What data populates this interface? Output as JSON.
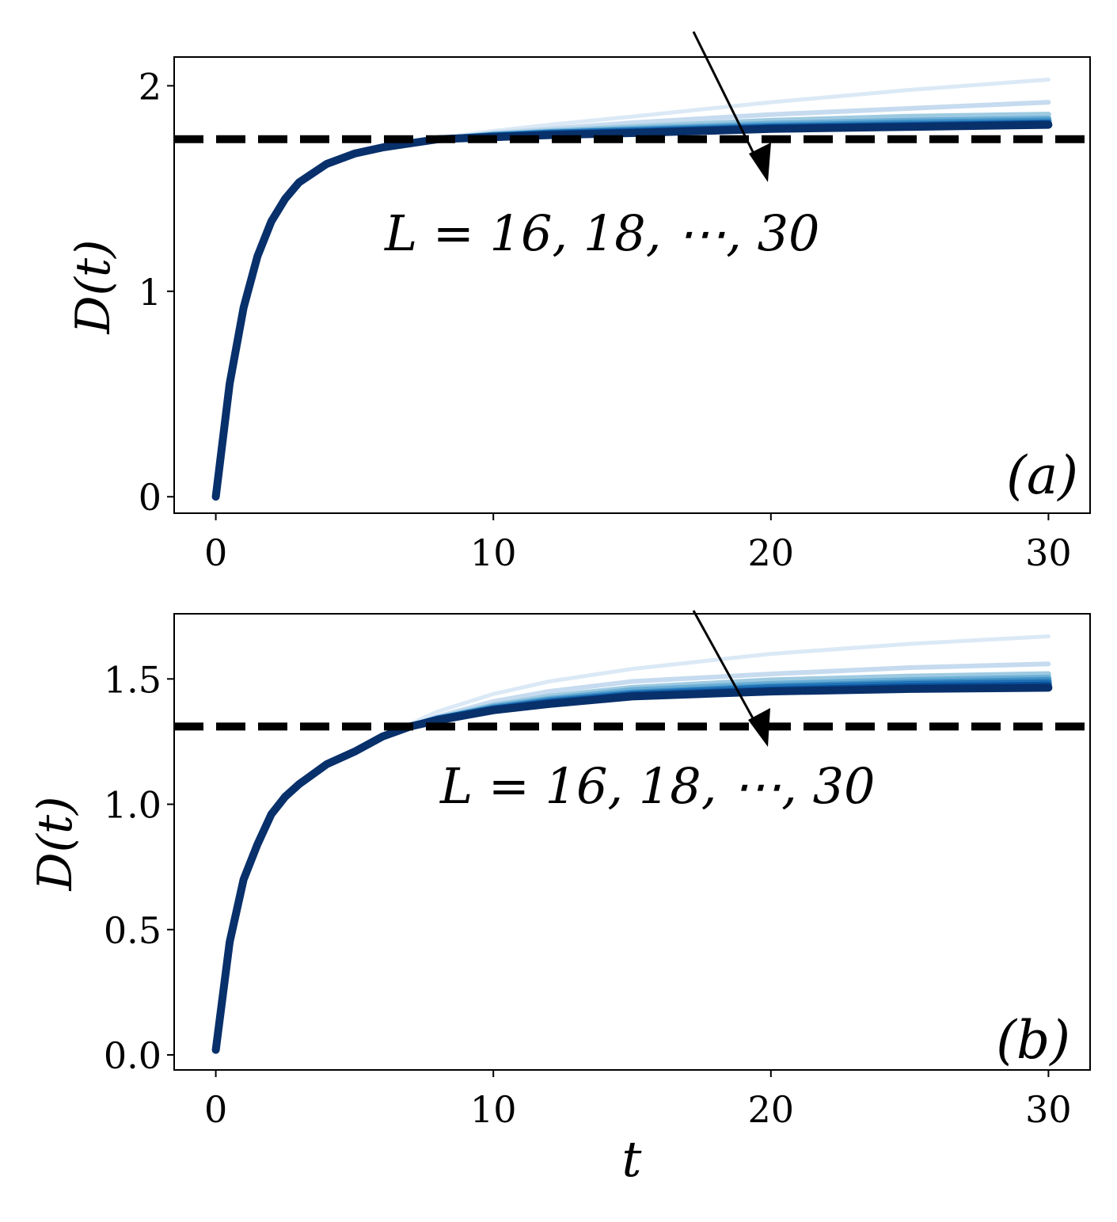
{
  "chart_data": [
    {
      "type": "line",
      "panel_label": "(a)",
      "ylabel": "D(t)",
      "xlabel": "",
      "xlim": [
        -1.5,
        31.5
      ],
      "ylim": [
        -0.08,
        2.14
      ],
      "xticks": [
        0,
        10,
        20,
        30
      ],
      "xtick_labels": [
        "0",
        "10",
        "20",
        "30"
      ],
      "yticks": [
        0,
        1,
        2
      ],
      "ytick_labels": [
        "0",
        "1",
        "2"
      ],
      "annotation": "L = 16, 18, ⋯, 30",
      "reference_line": {
        "y": 1.74,
        "style": "dashed",
        "color": "#000000"
      },
      "x": [
        0,
        0.5,
        1,
        1.5,
        2,
        2.5,
        3,
        4,
        5,
        6,
        8,
        10,
        12,
        15,
        20,
        25,
        30
      ],
      "series": [
        {
          "L": 16,
          "color": "#dbe9f6",
          "values": [
            0,
            0.55,
            0.92,
            1.17,
            1.34,
            1.45,
            1.53,
            1.62,
            1.67,
            1.7,
            1.745,
            1.78,
            1.81,
            1.85,
            1.92,
            1.98,
            2.03
          ]
        },
        {
          "L": 18,
          "color": "#c6dbef",
          "values": [
            0,
            0.55,
            0.92,
            1.17,
            1.34,
            1.45,
            1.53,
            1.62,
            1.67,
            1.7,
            1.74,
            1.77,
            1.79,
            1.82,
            1.86,
            1.89,
            1.92
          ]
        },
        {
          "L": 20,
          "color": "#9ecae1",
          "values": [
            0,
            0.55,
            0.92,
            1.17,
            1.34,
            1.45,
            1.53,
            1.62,
            1.67,
            1.7,
            1.74,
            1.765,
            1.78,
            1.8,
            1.83,
            1.85,
            1.86
          ]
        },
        {
          "L": 22,
          "color": "#6baed6",
          "values": [
            0,
            0.55,
            0.92,
            1.17,
            1.34,
            1.45,
            1.53,
            1.62,
            1.67,
            1.7,
            1.74,
            1.76,
            1.775,
            1.79,
            1.815,
            1.83,
            1.84
          ]
        },
        {
          "L": 24,
          "color": "#4292c6",
          "values": [
            0,
            0.55,
            0.92,
            1.17,
            1.34,
            1.45,
            1.53,
            1.62,
            1.67,
            1.7,
            1.74,
            1.76,
            1.77,
            1.785,
            1.805,
            1.82,
            1.83
          ]
        },
        {
          "L": 26,
          "color": "#2171b5",
          "values": [
            0,
            0.55,
            0.92,
            1.17,
            1.34,
            1.45,
            1.53,
            1.62,
            1.67,
            1.7,
            1.74,
            1.755,
            1.77,
            1.78,
            1.8,
            1.81,
            1.82
          ]
        },
        {
          "L": 28,
          "color": "#08519c",
          "values": [
            0,
            0.55,
            0.92,
            1.17,
            1.34,
            1.45,
            1.53,
            1.62,
            1.67,
            1.7,
            1.74,
            1.755,
            1.765,
            1.775,
            1.795,
            1.805,
            1.815
          ]
        },
        {
          "L": 30,
          "color": "#08306b",
          "values": [
            0,
            0.55,
            0.92,
            1.17,
            1.34,
            1.45,
            1.53,
            1.62,
            1.67,
            1.7,
            1.74,
            1.75,
            1.76,
            1.77,
            1.79,
            1.8,
            1.81
          ]
        }
      ]
    },
    {
      "type": "line",
      "panel_label": "(b)",
      "ylabel": "D(t)",
      "xlabel": "t",
      "xlim": [
        -1.5,
        31.5
      ],
      "ylim": [
        -0.06,
        1.76
      ],
      "xticks": [
        0,
        10,
        20,
        30
      ],
      "xtick_labels": [
        "0",
        "10",
        "20",
        "30"
      ],
      "yticks": [
        0.0,
        0.5,
        1.0,
        1.5
      ],
      "ytick_labels": [
        "0.0",
        "0.5",
        "1.0",
        "1.5"
      ],
      "annotation": "L = 16, 18, ⋯, 30",
      "reference_line": {
        "y": 1.31,
        "style": "dashed",
        "color": "#000000"
      },
      "x": [
        0,
        0.5,
        1,
        1.5,
        2,
        2.5,
        3,
        4,
        5,
        6,
        7,
        8,
        10,
        12,
        15,
        20,
        25,
        30
      ],
      "series": [
        {
          "L": 16,
          "color": "#dbe9f6",
          "values": [
            0.02,
            0.45,
            0.7,
            0.84,
            0.96,
            1.03,
            1.08,
            1.16,
            1.21,
            1.27,
            1.32,
            1.37,
            1.44,
            1.49,
            1.54,
            1.6,
            1.64,
            1.67
          ]
        },
        {
          "L": 18,
          "color": "#c6dbef",
          "values": [
            0.02,
            0.45,
            0.7,
            0.84,
            0.96,
            1.03,
            1.08,
            1.16,
            1.21,
            1.27,
            1.31,
            1.35,
            1.41,
            1.45,
            1.49,
            1.52,
            1.545,
            1.56
          ]
        },
        {
          "L": 20,
          "color": "#9ecae1",
          "values": [
            0.02,
            0.45,
            0.7,
            0.84,
            0.96,
            1.03,
            1.08,
            1.16,
            1.21,
            1.27,
            1.31,
            1.345,
            1.395,
            1.43,
            1.465,
            1.495,
            1.51,
            1.52
          ]
        },
        {
          "L": 22,
          "color": "#6baed6",
          "values": [
            0.02,
            0.45,
            0.7,
            0.84,
            0.96,
            1.03,
            1.08,
            1.16,
            1.21,
            1.27,
            1.31,
            1.34,
            1.39,
            1.42,
            1.455,
            1.48,
            1.495,
            1.505
          ]
        },
        {
          "L": 24,
          "color": "#4292c6",
          "values": [
            0.02,
            0.45,
            0.7,
            0.84,
            0.96,
            1.03,
            1.08,
            1.16,
            1.21,
            1.27,
            1.31,
            1.34,
            1.385,
            1.415,
            1.445,
            1.47,
            1.485,
            1.495
          ]
        },
        {
          "L": 26,
          "color": "#2171b5",
          "values": [
            0.02,
            0.45,
            0.7,
            0.84,
            0.96,
            1.03,
            1.08,
            1.16,
            1.21,
            1.27,
            1.31,
            1.34,
            1.38,
            1.41,
            1.44,
            1.465,
            1.478,
            1.485
          ]
        },
        {
          "L": 28,
          "color": "#08519c",
          "values": [
            0.02,
            0.45,
            0.7,
            0.84,
            0.96,
            1.03,
            1.08,
            1.16,
            1.21,
            1.27,
            1.31,
            1.34,
            1.38,
            1.405,
            1.435,
            1.455,
            1.468,
            1.475
          ]
        },
        {
          "L": 30,
          "color": "#08306b",
          "values": [
            0.02,
            0.45,
            0.7,
            0.84,
            0.96,
            1.03,
            1.08,
            1.16,
            1.21,
            1.27,
            1.31,
            1.335,
            1.375,
            1.4,
            1.43,
            1.45,
            1.46,
            1.465
          ]
        }
      ]
    }
  ]
}
